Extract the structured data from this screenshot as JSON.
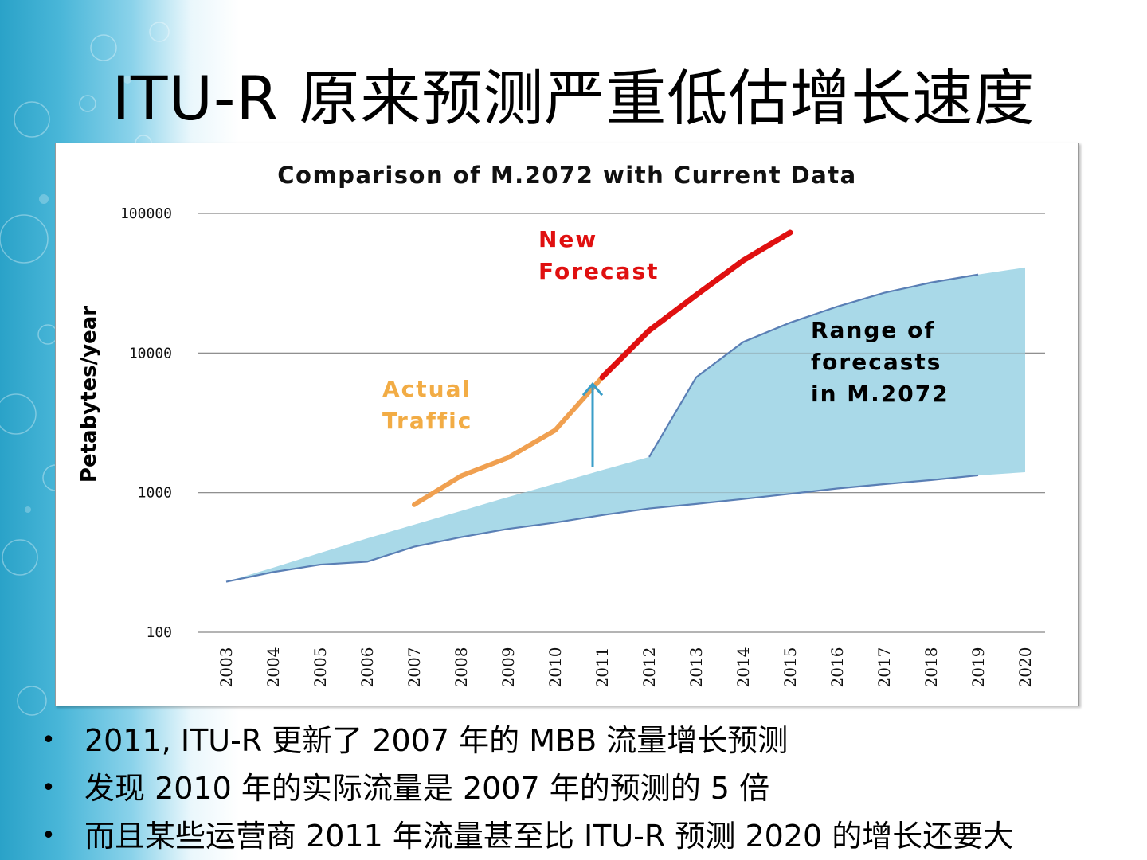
{
  "slide": {
    "title": "ITU-R 原来预测严重低估增长速度",
    "bullets": [
      "2011, ITU-R 更新了 2007 年的 MBB 流量增长预测",
      "发现 2010 年的实际流量是 2007 年的预测的 5 倍",
      "而且某些运营商 2011 年流量甚至比 ITU-R 预测 2020 的增长还要大"
    ]
  },
  "chart_data": {
    "type": "line",
    "title": "Comparison of M.2072 with Current Data",
    "ylabel": "Petabytes/year",
    "xlabel": "",
    "yscale": "log",
    "ylim": [
      100,
      100000
    ],
    "yticks": [
      "100",
      "1000",
      "10000",
      "100000"
    ],
    "categories": [
      "2003",
      "2004",
      "2005",
      "2006",
      "2007",
      "2008",
      "2009",
      "2010",
      "2011",
      "2012",
      "2013",
      "2014",
      "2015",
      "2016",
      "2017",
      "2018",
      "2019",
      "2020"
    ],
    "grid": true,
    "series": [
      {
        "name": "Actual Traffic",
        "color": "#f0a050",
        "x": [
          "2007",
          "2008",
          "2009",
          "2010",
          "2011"
        ],
        "values": [
          820,
          1320,
          1780,
          2800,
          6700
        ]
      },
      {
        "name": "New Forecast",
        "color": "#e01010",
        "x": [
          "2011",
          "2012",
          "2013",
          "2014",
          "2015"
        ],
        "values": [
          6700,
          14500,
          26000,
          46000,
          73000
        ]
      }
    ],
    "range": {
      "name": "Range of forecasts in M.2072",
      "color": "#a9d9e8",
      "edge_color": "#5a7fb5",
      "x": [
        "2003",
        "2004",
        "2005",
        "2006",
        "2007",
        "2008",
        "2009",
        "2010",
        "2011",
        "2012",
        "2013",
        "2014",
        "2015",
        "2016",
        "2017",
        "2018",
        "2019",
        "2020"
      ],
      "upper": [
        230,
        290,
        370,
        470,
        590,
        740,
        930,
        1160,
        1450,
        1800,
        6700,
        12000,
        16500,
        21500,
        27000,
        32000,
        36500,
        41000
      ],
      "lower": [
        230,
        270,
        305,
        320,
        410,
        480,
        550,
        610,
        690,
        770,
        830,
        900,
        980,
        1070,
        1150,
        1230,
        1330,
        1400
      ]
    },
    "annotations": [
      {
        "name": "new-forecast",
        "lines": [
          "New",
          "Forecast"
        ],
        "color": "#e01010"
      },
      {
        "name": "actual-traffic",
        "lines": [
          "Actual",
          "Traffic"
        ],
        "color": "#f2ac45"
      },
      {
        "name": "range",
        "lines": [
          "Range of",
          "forecasts",
          "in M.2072"
        ],
        "color": "#000000"
      }
    ],
    "arrow": {
      "x": "2011",
      "from": 1450,
      "to": 6000,
      "color": "#3a9ec8"
    }
  }
}
